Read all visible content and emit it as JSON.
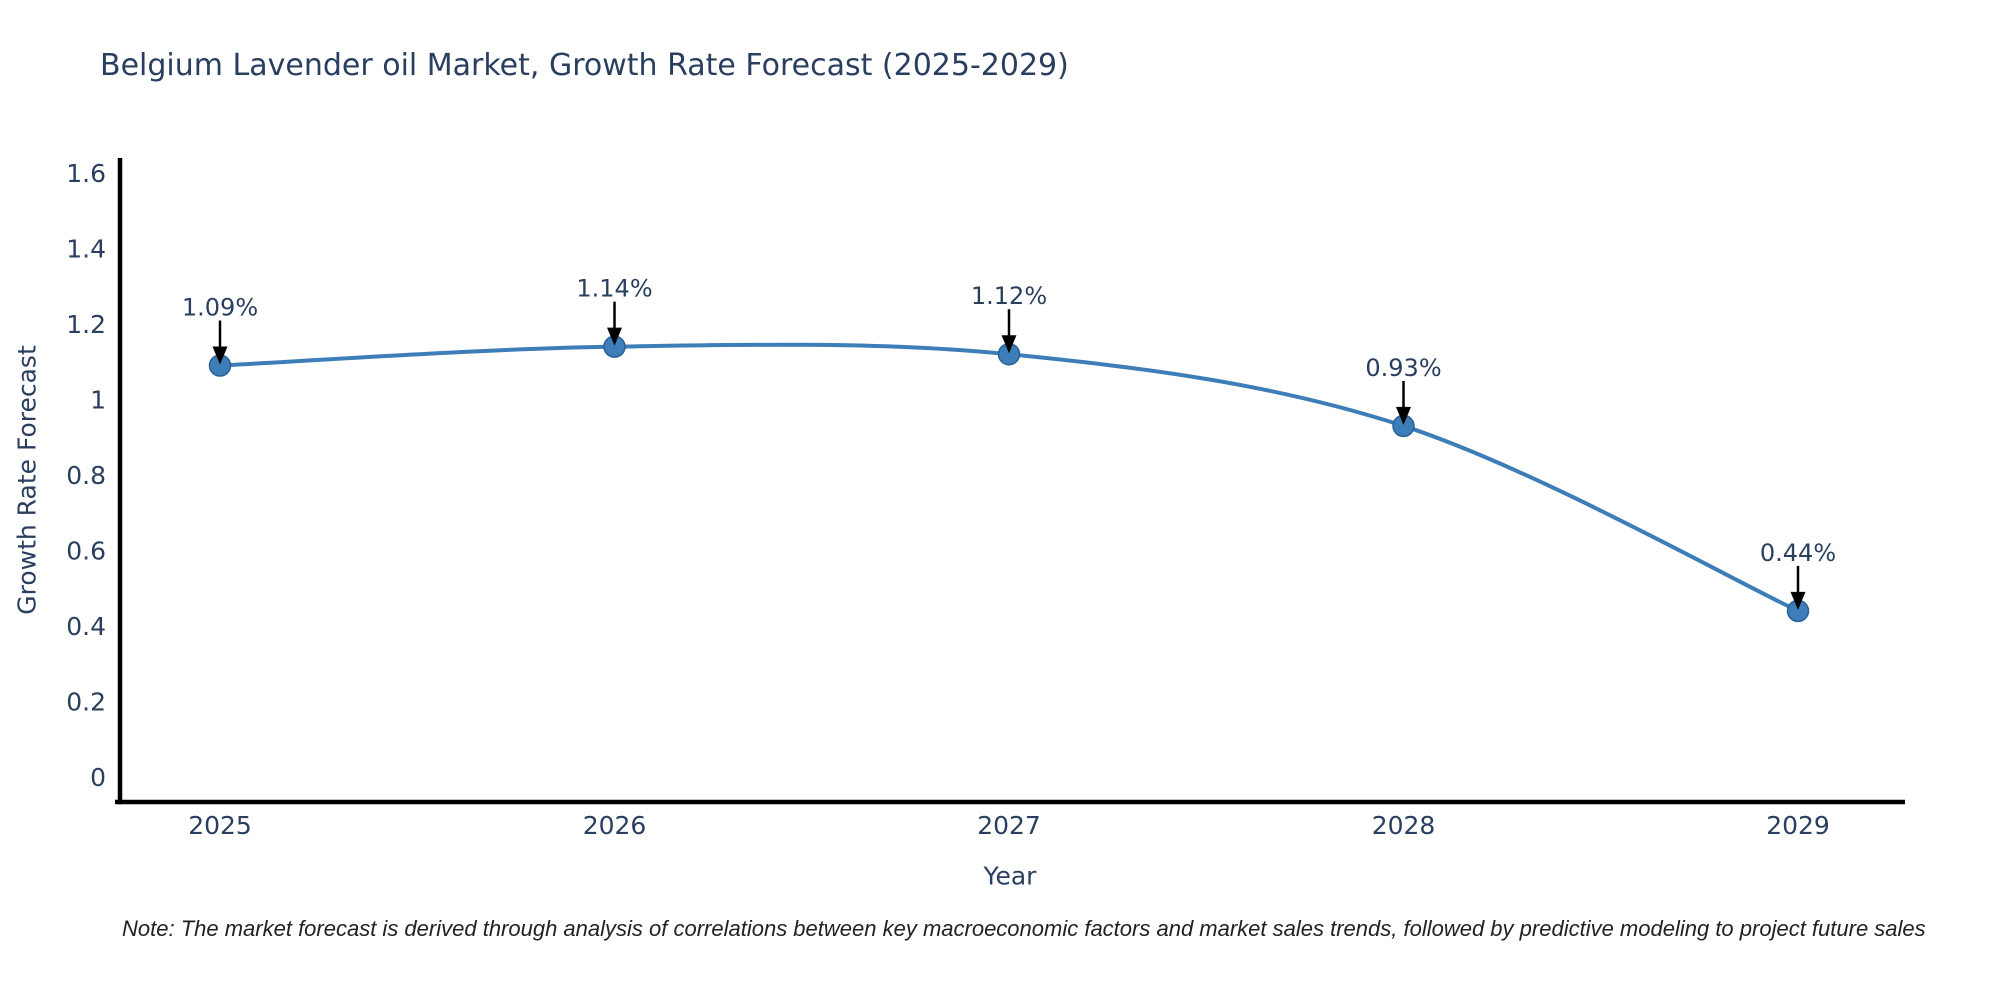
{
  "figure": {
    "title": "Belgium Lavender oil Market, Growth Rate Forecast (2025-2029)",
    "x_axis_title": "Year",
    "y_axis_title": "Growth Rate Forecast",
    "note": "Note: The market forecast is derived through analysis of correlations between key macroeconomic factors and market sales trends, followed by predictive modeling to project future sales"
  },
  "chart_data": {
    "type": "line",
    "title": "Belgium Lavender oil Market, Growth Rate Forecast (2025-2029)",
    "xlabel": "Year",
    "ylabel": "Growth Rate Forecast",
    "categories": [
      "2025",
      "2026",
      "2027",
      "2028",
      "2029"
    ],
    "series": [
      {
        "name": "Growth Rate Forecast",
        "values": [
          1.09,
          1.14,
          1.12,
          0.93,
          0.44
        ]
      }
    ],
    "values": [
      1.09,
      1.14,
      1.12,
      0.93,
      0.44
    ],
    "point_labels": [
      "1.09%",
      "1.14%",
      "1.12%",
      "0.93%",
      "0.44%"
    ],
    "y_ticks": [
      0,
      0.2,
      0.4,
      0.6,
      0.8,
      1,
      1.2,
      1.4,
      1.6
    ],
    "ylim": [
      -0.07,
      1.64
    ],
    "curve": "spline",
    "grid": false,
    "legend_position": "none",
    "annotation_style": "down-arrow-to-point",
    "colors": {
      "line": "#3d7db8",
      "marker": "#3d7db8",
      "marker_edge": "#2a6099",
      "annotation_arrow": "#000000",
      "axis_line": "#000000",
      "text": "#2a3f5f",
      "note_text": "#222222",
      "background": "#ffffff"
    }
  }
}
